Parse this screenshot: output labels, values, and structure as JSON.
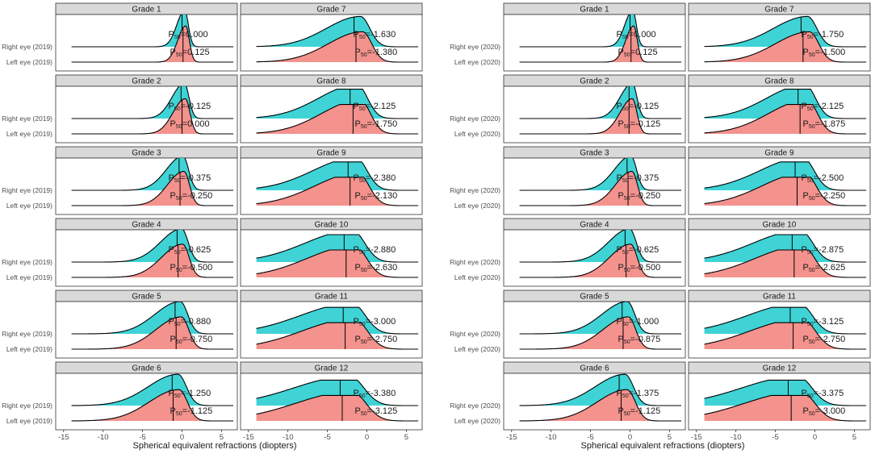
{
  "colors": {
    "right_eye": "#3fd3d6",
    "left_eye": "#f4928d",
    "strip_bg": "#d9d9d9",
    "frame": "#333333",
    "line": "#000000"
  },
  "chart_data": [
    {
      "type": "ridgeline",
      "year": "2019",
      "xlabel": "Spherical equivalent refractions (diopters)",
      "xlim": [
        -16,
        7
      ],
      "x_ticks": [
        -15,
        -10,
        -5,
        0,
        5
      ],
      "x_tick_labels": [
        "-15",
        "-10",
        "-5",
        "0",
        "5"
      ],
      "row_labels": [
        "Right eye (2019)",
        "Left eye (2019)"
      ],
      "panels": [
        {
          "grade": "Grade 1",
          "right_p50": 0.0,
          "left_p50": 0.125,
          "right_label": "P50=0.000",
          "left_label": "P50=0.125"
        },
        {
          "grade": "Grade 7",
          "right_p50": -1.63,
          "left_p50": -1.38,
          "right_label": "P50=-1.630",
          "left_label": "P50=-1.380"
        },
        {
          "grade": "Grade 2",
          "right_p50": -0.125,
          "left_p50": 0.0,
          "right_label": "P50=-0.125",
          "left_label": "P50=0.000"
        },
        {
          "grade": "Grade 8",
          "right_p50": -2.125,
          "left_p50": -1.75,
          "right_label": "P50=-2.125",
          "left_label": "P50=-1.750"
        },
        {
          "grade": "Grade 3",
          "right_p50": -0.375,
          "left_p50": -0.25,
          "right_label": "P50=-0.375",
          "left_label": "P50=-0.250"
        },
        {
          "grade": "Grade 9",
          "right_p50": -2.38,
          "left_p50": -2.13,
          "right_label": "P50=-2.380",
          "left_label": "P50=-2.130"
        },
        {
          "grade": "Grade 4",
          "right_p50": -0.625,
          "left_p50": -0.5,
          "right_label": "P50=-0.625",
          "left_label": "P50=-0.500"
        },
        {
          "grade": "Grade 10",
          "right_p50": -2.88,
          "left_p50": -2.63,
          "right_label": "P50=-2.880",
          "left_label": "P50=-2.630"
        },
        {
          "grade": "Grade 5",
          "right_p50": -0.88,
          "left_p50": -0.75,
          "right_label": "P50=-0.880",
          "left_label": "P50=-0.750"
        },
        {
          "grade": "Grade 11",
          "right_p50": -3.0,
          "left_p50": -2.75,
          "right_label": "P50=-3.000",
          "left_label": "P50=-2.750"
        },
        {
          "grade": "Grade 6",
          "right_p50": -1.25,
          "left_p50": -1.125,
          "right_label": "P50=-1.250",
          "left_label": "P50=-1.125"
        },
        {
          "grade": "Grade 12",
          "right_p50": -3.38,
          "left_p50": -3.125,
          "right_label": "P50=-3.380",
          "left_label": "P50=-3.125"
        }
      ]
    },
    {
      "type": "ridgeline",
      "year": "2020",
      "xlabel": "Spherical equivalent refractions (diopters)",
      "xlim": [
        -16,
        7
      ],
      "x_ticks": [
        -15,
        -10,
        -5,
        0,
        5
      ],
      "x_tick_labels": [
        "-15",
        "-10",
        "-5",
        "0",
        "5"
      ],
      "row_labels": [
        "Right eye (2020)",
        "Left eye (2020)"
      ],
      "panels": [
        {
          "grade": "Grade 1",
          "right_p50": 0.0,
          "left_p50": 0.125,
          "right_label": "P50=0.000",
          "left_label": "P50=0.125"
        },
        {
          "grade": "Grade 7",
          "right_p50": -1.75,
          "left_p50": -1.5,
          "right_label": "P50=-1.750",
          "left_label": "P50=-1.500"
        },
        {
          "grade": "Grade 2",
          "right_p50": -0.125,
          "left_p50": -0.125,
          "right_label": "P50=-0.125",
          "left_label": "P50=-0.125"
        },
        {
          "grade": "Grade 8",
          "right_p50": -2.125,
          "left_p50": -1.875,
          "right_label": "P50=-2.125",
          "left_label": "P50=-1.875"
        },
        {
          "grade": "Grade 3",
          "right_p50": -0.375,
          "left_p50": -0.25,
          "right_label": "P50=-0.375",
          "left_label": "P50=-0.250"
        },
        {
          "grade": "Grade 9",
          "right_p50": -2.5,
          "left_p50": -2.25,
          "right_label": "P50=-2.500",
          "left_label": "P50=-2.250"
        },
        {
          "grade": "Grade 4",
          "right_p50": -0.625,
          "left_p50": -0.5,
          "right_label": "P50=-0.625",
          "left_label": "P50=-0.500"
        },
        {
          "grade": "Grade 10",
          "right_p50": -2.875,
          "left_p50": -2.625,
          "right_label": "P50=-2.875",
          "left_label": "P50=-2.625"
        },
        {
          "grade": "Grade 5",
          "right_p50": -1.0,
          "left_p50": -0.875,
          "right_label": "P50=-1.000",
          "left_label": "P50=-0.875"
        },
        {
          "grade": "Grade 11",
          "right_p50": -3.125,
          "left_p50": -2.75,
          "right_label": "P50=-3.125",
          "left_label": "P50=-2.750"
        },
        {
          "grade": "Grade 6",
          "right_p50": -1.375,
          "left_p50": -1.125,
          "right_label": "P50=-1.375",
          "left_label": "P50=-1.125"
        },
        {
          "grade": "Grade 12",
          "right_p50": -3.375,
          "left_p50": -3.0,
          "right_label": "P50=-3.375",
          "left_label": "P50=-3.000"
        }
      ]
    }
  ]
}
